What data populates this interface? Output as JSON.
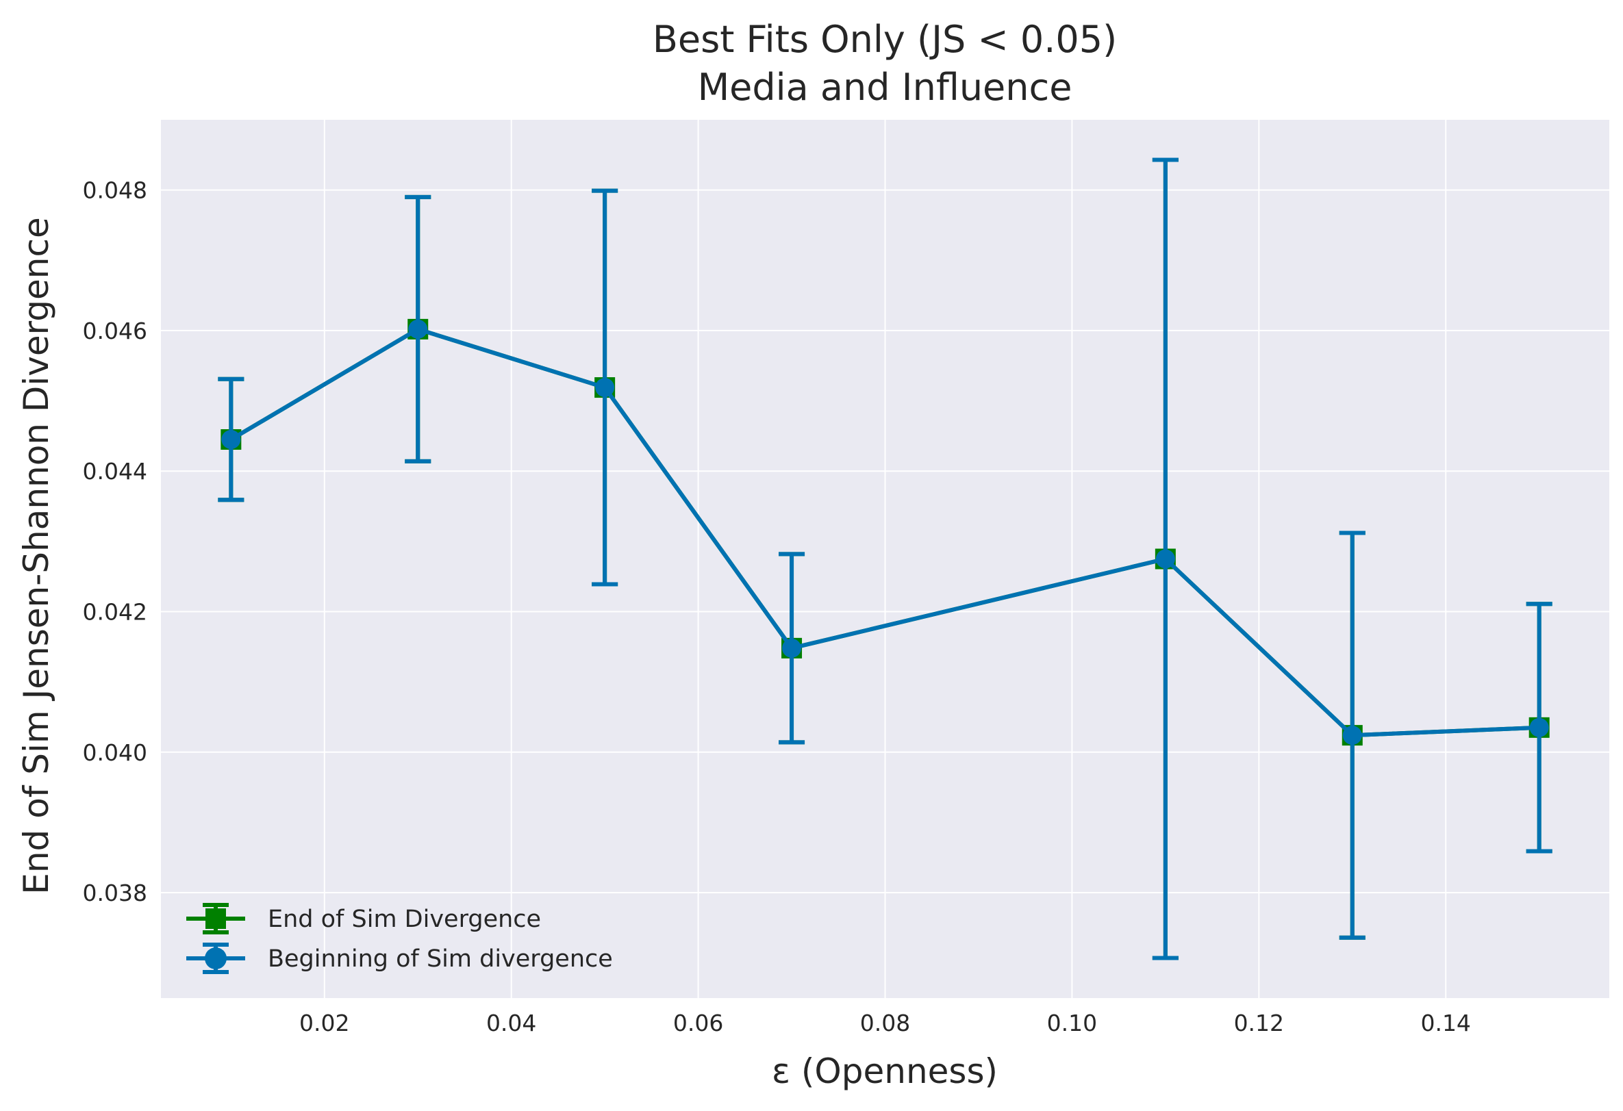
{
  "chart_data": {
    "type": "line",
    "title": "Best Fits Only (JS < 0.05)",
    "subtitle": "Media and Influence",
    "xlabel": "ε (Openness)",
    "ylabel": "End of Sim Jensen-Shannon Divergence",
    "xlim": [
      0.0025,
      0.1575
    ],
    "ylim": [
      0.0365,
      0.049
    ],
    "xticks": [
      0.02,
      0.04,
      0.06,
      0.08,
      0.1,
      0.12,
      0.14
    ],
    "xtick_labels": [
      "0.02",
      "0.04",
      "0.06",
      "0.08",
      "0.10",
      "0.12",
      "0.14"
    ],
    "yticks": [
      0.038,
      0.04,
      0.042,
      0.044,
      0.046,
      0.048
    ],
    "ytick_labels": [
      "0.038",
      "0.040",
      "0.042",
      "0.044",
      "0.046",
      "0.048"
    ],
    "grid": true,
    "legend_position": "lower-left",
    "x": [
      0.01,
      0.03,
      0.05,
      0.07,
      0.11,
      0.13,
      0.15
    ],
    "series": [
      {
        "name": "End of Sim Divergence",
        "marker": "square",
        "color": "#008000",
        "values": [
          0.04445,
          0.04602,
          0.04519,
          0.04148,
          0.04275,
          0.04024,
          0.04035
        ],
        "error": [
          0.00086,
          0.00188,
          0.0028,
          0.00134,
          0.00568,
          0.00288,
          0.00176
        ]
      },
      {
        "name": "Beginning of Sim divergence",
        "marker": "circle",
        "color": "#0072B2",
        "values": [
          0.04445,
          0.04602,
          0.04519,
          0.04148,
          0.04275,
          0.04024,
          0.04035
        ],
        "error": [
          0.00086,
          0.00188,
          0.0028,
          0.00134,
          0.00568,
          0.00288,
          0.00176
        ]
      }
    ]
  },
  "colors": {
    "plot_background": "#EAEAF2",
    "grid": "#FFFFFF",
    "text": "#262626"
  }
}
